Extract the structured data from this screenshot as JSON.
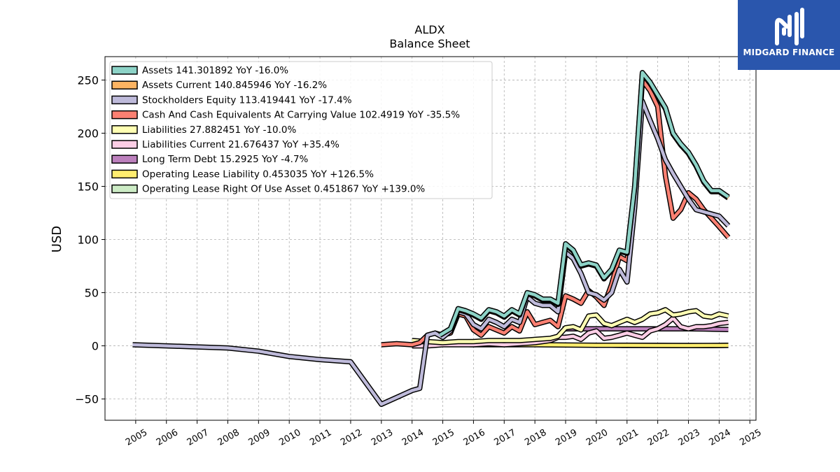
{
  "chart_data": {
    "type": "line",
    "title": "ALDX",
    "subtitle": "Balance  Sheet",
    "ylabel": "USD",
    "xlabel": "",
    "xlim": [
      2004.0,
      2025.2
    ],
    "ylim": [
      -70,
      272
    ],
    "x_ticks": [
      "2005",
      "2006",
      "2007",
      "2008",
      "2009",
      "2010",
      "2011",
      "2012",
      "2013",
      "2014",
      "2015",
      "2016",
      "2017",
      "2018",
      "2019",
      "2020",
      "2021",
      "2022",
      "2023",
      "2024",
      "2025"
    ],
    "y_ticks": [
      -50,
      0,
      50,
      100,
      150,
      200,
      250
    ],
    "grid": true,
    "legend_position": "upper-left",
    "series": [
      {
        "name": "Assets",
        "color": "#8dd3c7",
        "legend": "Assets  141.301892 YoY -16.0%",
        "x": [
          2014.9,
          2015.25,
          2015.5,
          2015.75,
          2016.0,
          2016.25,
          2016.5,
          2016.75,
          2017.0,
          2017.25,
          2017.5,
          2017.75,
          2018.0,
          2018.25,
          2018.5,
          2018.75,
          2019.0,
          2019.25,
          2019.5,
          2019.75,
          2020.0,
          2020.25,
          2020.5,
          2020.75,
          2021.0,
          2021.25,
          2021.5,
          2021.75,
          2022.0,
          2022.25,
          2022.5,
          2022.75,
          2023.0,
          2023.25,
          2023.5,
          2023.75,
          2024.0,
          2024.3
        ],
        "values": [
          10,
          16,
          35,
          33,
          30,
          26,
          34,
          32,
          28,
          34,
          30,
          50,
          48,
          44,
          44,
          40,
          96,
          90,
          76,
          78,
          76,
          64,
          72,
          90,
          88,
          150,
          257,
          248,
          236,
          224,
          200,
          190,
          182,
          170,
          155,
          146,
          146,
          140
        ]
      },
      {
        "name": "Assets Current",
        "color": "#fdb462",
        "legend": "Assets Current  140.845946 YoY -16.2%",
        "x": [
          2014.9,
          2015.25,
          2015.5,
          2015.75,
          2016.0,
          2016.25,
          2016.5,
          2016.75,
          2017.0,
          2017.25,
          2017.5,
          2017.75,
          2018.0,
          2018.25,
          2018.5,
          2018.75,
          2019.0,
          2019.25,
          2019.5,
          2019.75,
          2020.0,
          2020.25,
          2020.5,
          2020.75,
          2021.0,
          2021.25,
          2021.5,
          2021.75,
          2022.0,
          2022.25,
          2022.5,
          2022.75,
          2023.0,
          2023.25,
          2023.5,
          2023.75,
          2024.0,
          2024.3
        ],
        "values": [
          10,
          16,
          34,
          32,
          29,
          25,
          33,
          31,
          27,
          33,
          29,
          49,
          47,
          43,
          43,
          39,
          95,
          89,
          75,
          77,
          75,
          63,
          71,
          89,
          87,
          149,
          256,
          247,
          235,
          223,
          199,
          189,
          181,
          169,
          154,
          145,
          145,
          139
        ]
      },
      {
        "name": "Stockholders Equity",
        "color": "#bebada",
        "legend": "Stockholders Equity  113.419441 YoY -17.4%",
        "x": [
          2004.9,
          2006.0,
          2007.0,
          2008.0,
          2009.0,
          2010.0,
          2011.0,
          2012.0,
          2013.0,
          2014.0,
          2014.25,
          2014.5,
          2014.75,
          2015.0,
          2015.25,
          2015.5,
          2015.75,
          2016.0,
          2016.25,
          2016.5,
          2016.75,
          2017.0,
          2017.25,
          2017.5,
          2017.75,
          2018.0,
          2018.25,
          2018.5,
          2018.75,
          2019.0,
          2019.25,
          2019.5,
          2019.75,
          2020.0,
          2020.25,
          2020.5,
          2020.75,
          2021.0,
          2021.25,
          2021.5,
          2021.75,
          2022.0,
          2022.25,
          2022.5,
          2022.75,
          2023.0,
          2023.25,
          2023.5,
          2023.75,
          2024.0,
          2024.3
        ],
        "values": [
          1,
          0,
          -1,
          -2,
          -5,
          -10,
          -13,
          -15,
          -55,
          -42,
          -40,
          10,
          12,
          8,
          14,
          32,
          30,
          20,
          16,
          25,
          22,
          18,
          25,
          22,
          46,
          40,
          38,
          38,
          32,
          88,
          82,
          68,
          50,
          48,
          43,
          50,
          72,
          60,
          130,
          230,
          212,
          195,
          175,
          162,
          150,
          138,
          128,
          126,
          124,
          122,
          113
        ]
      },
      {
        "name": "Cash And Cash Equivalents At Carrying Value",
        "color": "#fb8072",
        "legend": "Cash And Cash Equivalents At Carrying Value  102.4919 YoY -35.5%",
        "x": [
          2013.0,
          2013.5,
          2014.0,
          2014.25,
          2014.5,
          2014.75,
          2015.0,
          2015.25,
          2015.5,
          2015.75,
          2016.0,
          2016.25,
          2016.5,
          2016.75,
          2017.0,
          2017.25,
          2017.5,
          2017.75,
          2018.0,
          2018.25,
          2018.5,
          2018.75,
          2019.0,
          2019.25,
          2019.5,
          2019.75,
          2020.0,
          2020.25,
          2020.5,
          2020.75,
          2021.0,
          2021.25,
          2021.5,
          2021.75,
          2022.0,
          2022.25,
          2022.5,
          2022.75,
          2023.0,
          2023.25,
          2023.5,
          2023.75,
          2024.0,
          2024.3
        ],
        "values": [
          1,
          2,
          1,
          3,
          10,
          12,
          10,
          12,
          30,
          28,
          15,
          10,
          18,
          15,
          12,
          18,
          14,
          32,
          20,
          22,
          24,
          18,
          47,
          44,
          40,
          52,
          46,
          38,
          58,
          84,
          80,
          140,
          250,
          240,
          225,
          160,
          120,
          128,
          144,
          138,
          128,
          120,
          112,
          102
        ]
      },
      {
        "name": "Liabilities",
        "color": "#ffffb3",
        "legend": "Liabilities  27.882451 YoY -10.0%",
        "x": [
          2014.0,
          2014.5,
          2015.0,
          2015.5,
          2016.0,
          2016.5,
          2017.0,
          2017.5,
          2018.0,
          2018.5,
          2018.75,
          2019.0,
          2019.25,
          2019.5,
          2019.75,
          2020.0,
          2020.25,
          2020.5,
          2020.75,
          2021.0,
          2021.25,
          2021.5,
          2021.75,
          2022.0,
          2022.25,
          2022.5,
          2022.75,
          2023.0,
          2023.25,
          2023.5,
          2023.75,
          2024.0,
          2024.3
        ],
        "values": [
          5,
          4,
          3,
          4,
          4,
          5,
          5,
          5,
          6,
          7,
          9,
          17,
          18,
          15,
          28,
          29,
          21,
          19,
          22,
          25,
          22,
          25,
          30,
          31,
          34,
          29,
          30,
          32,
          33,
          28,
          27,
          30,
          28
        ]
      },
      {
        "name": "Liabilities Current",
        "color": "#fccde5",
        "legend": "Liabilities Current  21.676437 YoY +35.4%",
        "x": [
          2014.0,
          2014.5,
          2015.0,
          2015.5,
          2016.0,
          2016.5,
          2017.0,
          2017.5,
          2018.0,
          2018.5,
          2018.75,
          2019.0,
          2019.25,
          2019.5,
          2019.75,
          2020.0,
          2020.25,
          2020.5,
          2020.75,
          2021.0,
          2021.25,
          2021.5,
          2021.75,
          2022.0,
          2022.25,
          2022.5,
          2022.75,
          2023.0,
          2023.25,
          2023.5,
          2023.75,
          2024.0,
          2024.3
        ],
        "values": [
          0,
          0,
          1,
          1,
          1,
          2,
          1,
          2,
          3,
          5,
          8,
          8,
          9,
          6,
          12,
          14,
          7,
          8,
          10,
          12,
          10,
          8,
          14,
          16,
          20,
          26,
          18,
          16,
          18,
          18,
          19,
          21,
          22
        ]
      },
      {
        "name": "Long Term Debt",
        "color": "#bc80bd",
        "legend": "Long Term Debt  15.2925 YoY -4.7%",
        "x": [
          2018.9,
          2019.5,
          2020.0,
          2020.5,
          2021.0,
          2021.5,
          2022.0,
          2022.5,
          2023.0,
          2023.5,
          2024.0,
          2024.3
        ],
        "values": [
          16,
          16,
          16,
          16,
          16,
          16,
          16,
          16,
          16,
          15.8,
          15.5,
          15.3
        ]
      },
      {
        "name": "Operating Lease Liability",
        "color": "#ffed6f",
        "legend": "Operating Lease Liability  0.453035 YoY +126.5%",
        "x": [
          2014.0,
          2014.5,
          2015.0,
          2015.5,
          2016.0,
          2017.0,
          2018.0,
          2019.0,
          2020.0,
          2021.0,
          2022.0,
          2023.0,
          2024.0,
          2024.3
        ],
        "values": [
          4,
          3,
          2,
          1.5,
          1,
          1,
          1,
          0.8,
          0.6,
          0.5,
          0.4,
          0.3,
          0.4,
          0.45
        ]
      },
      {
        "name": "Operating Lease Right Of Use Asset",
        "color": "#ccebc5",
        "legend": "Operating Lease Right Of Use Asset  0.451867 YoY +139.0%",
        "x": [
          2019.9,
          2020.5,
          2021.0,
          2021.5,
          2022.0,
          2022.5,
          2023.0,
          2023.5,
          2024.0,
          2024.3
        ],
        "values": [
          0.5,
          0.5,
          0.4,
          0.4,
          0.4,
          0.3,
          0.3,
          0.2,
          0.3,
          0.45
        ]
      }
    ]
  },
  "logo": {
    "brand": "MIDGARD FINANCE",
    "mark": "MF",
    "background": "#2a56ad"
  }
}
